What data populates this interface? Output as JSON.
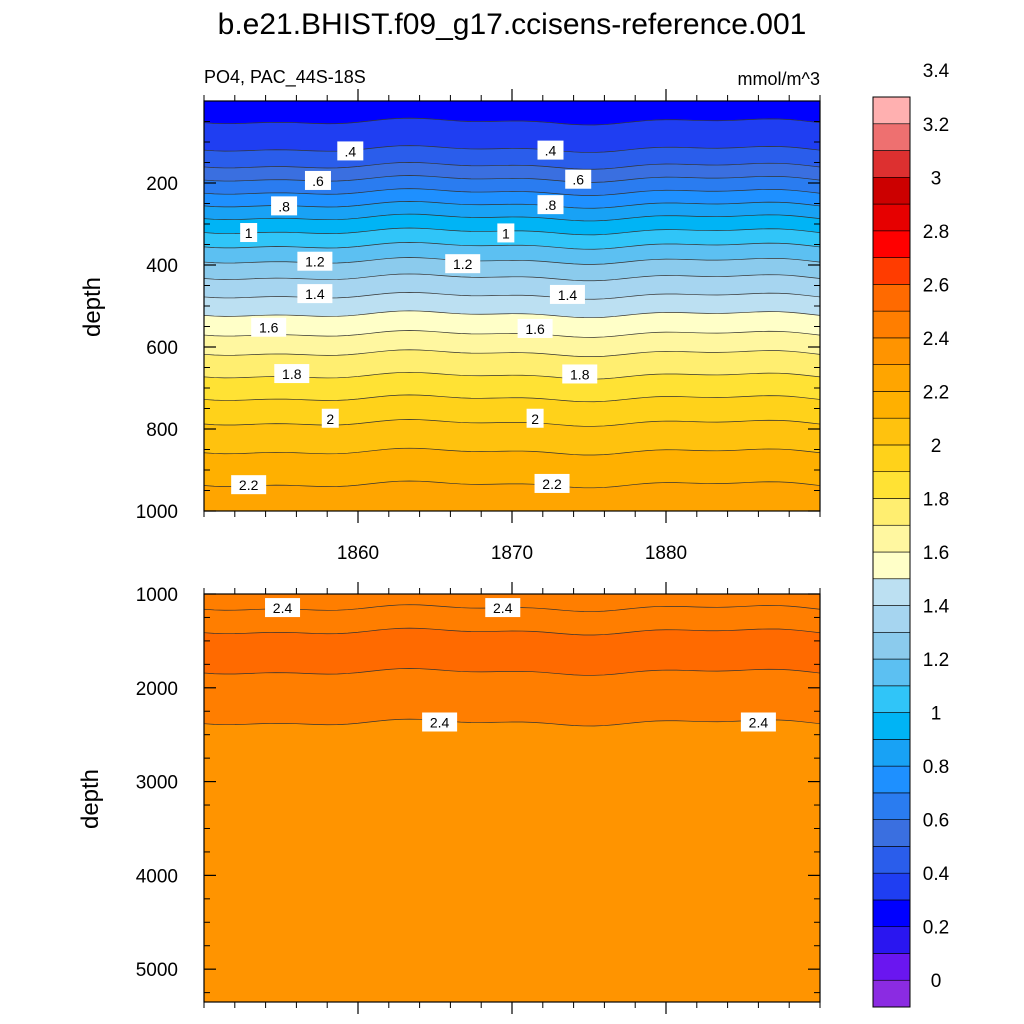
{
  "figure": {
    "title": "b.e21.BHIST.f09_g17.ccisens-reference.001",
    "subtitle_left": "PO4, PAC_44S-18S",
    "subtitle_right": "mmol/m^3"
  },
  "chart_data": [
    {
      "type": "contour",
      "panel": "upper",
      "ylabel": "depth",
      "y_reversed": true,
      "ylim": [
        0,
        1000
      ],
      "xlim": [
        1850,
        1890
      ],
      "yticks": [
        200,
        400,
        600,
        800,
        1000
      ],
      "xticks": [
        1860,
        1870,
        1880
      ],
      "contour_lines": [
        {
          "level": 0.3,
          "depth": 50
        },
        {
          "level": 0.4,
          "depth": 117
        },
        {
          "level": 0.5,
          "depth": 158
        },
        {
          "level": 0.6,
          "depth": 190
        },
        {
          "level": 0.7,
          "depth": 222
        },
        {
          "level": 0.8,
          "depth": 253
        },
        {
          "level": 0.9,
          "depth": 284
        },
        {
          "level": 1.0,
          "depth": 318
        },
        {
          "level": 1.1,
          "depth": 353
        },
        {
          "level": 1.2,
          "depth": 390
        },
        {
          "level": 1.3,
          "depth": 430
        },
        {
          "level": 1.4,
          "depth": 475
        },
        {
          "level": 1.5,
          "depth": 520
        },
        {
          "level": 1.6,
          "depth": 568
        },
        {
          "level": 1.7,
          "depth": 615
        },
        {
          "level": 1.8,
          "depth": 670
        },
        {
          "level": 1.9,
          "depth": 725
        },
        {
          "level": 2.0,
          "depth": 785
        },
        {
          "level": 2.1,
          "depth": 855
        },
        {
          "level": 2.2,
          "depth": 935
        }
      ],
      "labels": [
        {
          "text": ".4",
          "x": 1859.5,
          "depth": 123
        },
        {
          "text": ".4",
          "x": 1872.5,
          "depth": 121
        },
        {
          "text": ".6",
          "x": 1857.4,
          "depth": 195
        },
        {
          "text": ".6",
          "x": 1874.3,
          "depth": 192
        },
        {
          "text": ".8",
          "x": 1855.2,
          "depth": 257
        },
        {
          "text": ".8",
          "x": 1872.5,
          "depth": 254
        },
        {
          "text": "1",
          "x": 1852.9,
          "depth": 322
        },
        {
          "text": "1",
          "x": 1869.6,
          "depth": 323
        },
        {
          "text": "1.2",
          "x": 1857.2,
          "depth": 392
        },
        {
          "text": "1.2",
          "x": 1866.8,
          "depth": 398
        },
        {
          "text": "1.4",
          "x": 1857.2,
          "depth": 471
        },
        {
          "text": "1.4",
          "x": 1873.6,
          "depth": 473
        },
        {
          "text": "1.6",
          "x": 1854.2,
          "depth": 553
        },
        {
          "text": "1.6",
          "x": 1871.5,
          "depth": 556
        },
        {
          "text": "1.8",
          "x": 1855.7,
          "depth": 666
        },
        {
          "text": "1.8",
          "x": 1874.4,
          "depth": 667
        },
        {
          "text": "2",
          "x": 1858.2,
          "depth": 775
        },
        {
          "text": "2",
          "x": 1871.5,
          "depth": 775
        },
        {
          "text": "2.2",
          "x": 1852.9,
          "depth": 937
        },
        {
          "text": "2.2",
          "x": 1872.6,
          "depth": 934
        }
      ]
    },
    {
      "type": "contour",
      "panel": "lower",
      "ylabel": "depth",
      "y_reversed": true,
      "ylim": [
        1000,
        5350
      ],
      "xlim": [
        1850,
        1890
      ],
      "yticks": [
        1000,
        2000,
        3000,
        4000,
        5000
      ],
      "xticks": [
        1860,
        1870,
        1880
      ],
      "contour_lines": [
        {
          "level": 2.4,
          "depth": 1150
        },
        {
          "level": 2.5,
          "depth": 1400
        },
        {
          "level": 2.5,
          "depth": 1830
        },
        {
          "level": 2.4,
          "depth": 2370
        }
      ],
      "labels": [
        {
          "text": "2.4",
          "x": 1855.1,
          "depth": 1150
        },
        {
          "text": "2.4",
          "x": 1869.4,
          "depth": 1150
        },
        {
          "text": "2.4",
          "x": 1865.3,
          "depth": 2370
        },
        {
          "text": "2.4",
          "x": 1886.0,
          "depth": 2370
        }
      ]
    }
  ],
  "colorbar": {
    "tick_labels": [
      "0",
      "0.2",
      "0.4",
      "0.6",
      "0.8",
      "1",
      "1.2",
      "1.4",
      "1.6",
      "1.8",
      "2",
      "2.2",
      "2.4",
      "2.6",
      "2.8",
      "3",
      "3.2",
      "3.4"
    ],
    "colors": [
      "#8B2BE2",
      "#6A16F0",
      "#2A16F0",
      "#0000FF",
      "#1F3EF2",
      "#2A5DEB",
      "#3A6FE0",
      "#2A7CF0",
      "#1E90FF",
      "#18A2F5",
      "#00B4F5",
      "#30C5F8",
      "#5CC0F2",
      "#8BCBED",
      "#A6D5F0",
      "#BCE0F2",
      "#FFFFC8",
      "#FFF7A0",
      "#FFEE70",
      "#FFE234",
      "#FFD21A",
      "#FFC20E",
      "#FFB000",
      "#FFA500",
      "#FF9400",
      "#FF7E00",
      "#FF6A00",
      "#FF3C00",
      "#FF0000",
      "#E60000",
      "#CC0000",
      "#DD3030",
      "#EE7070",
      "#FFB0B0"
    ]
  }
}
